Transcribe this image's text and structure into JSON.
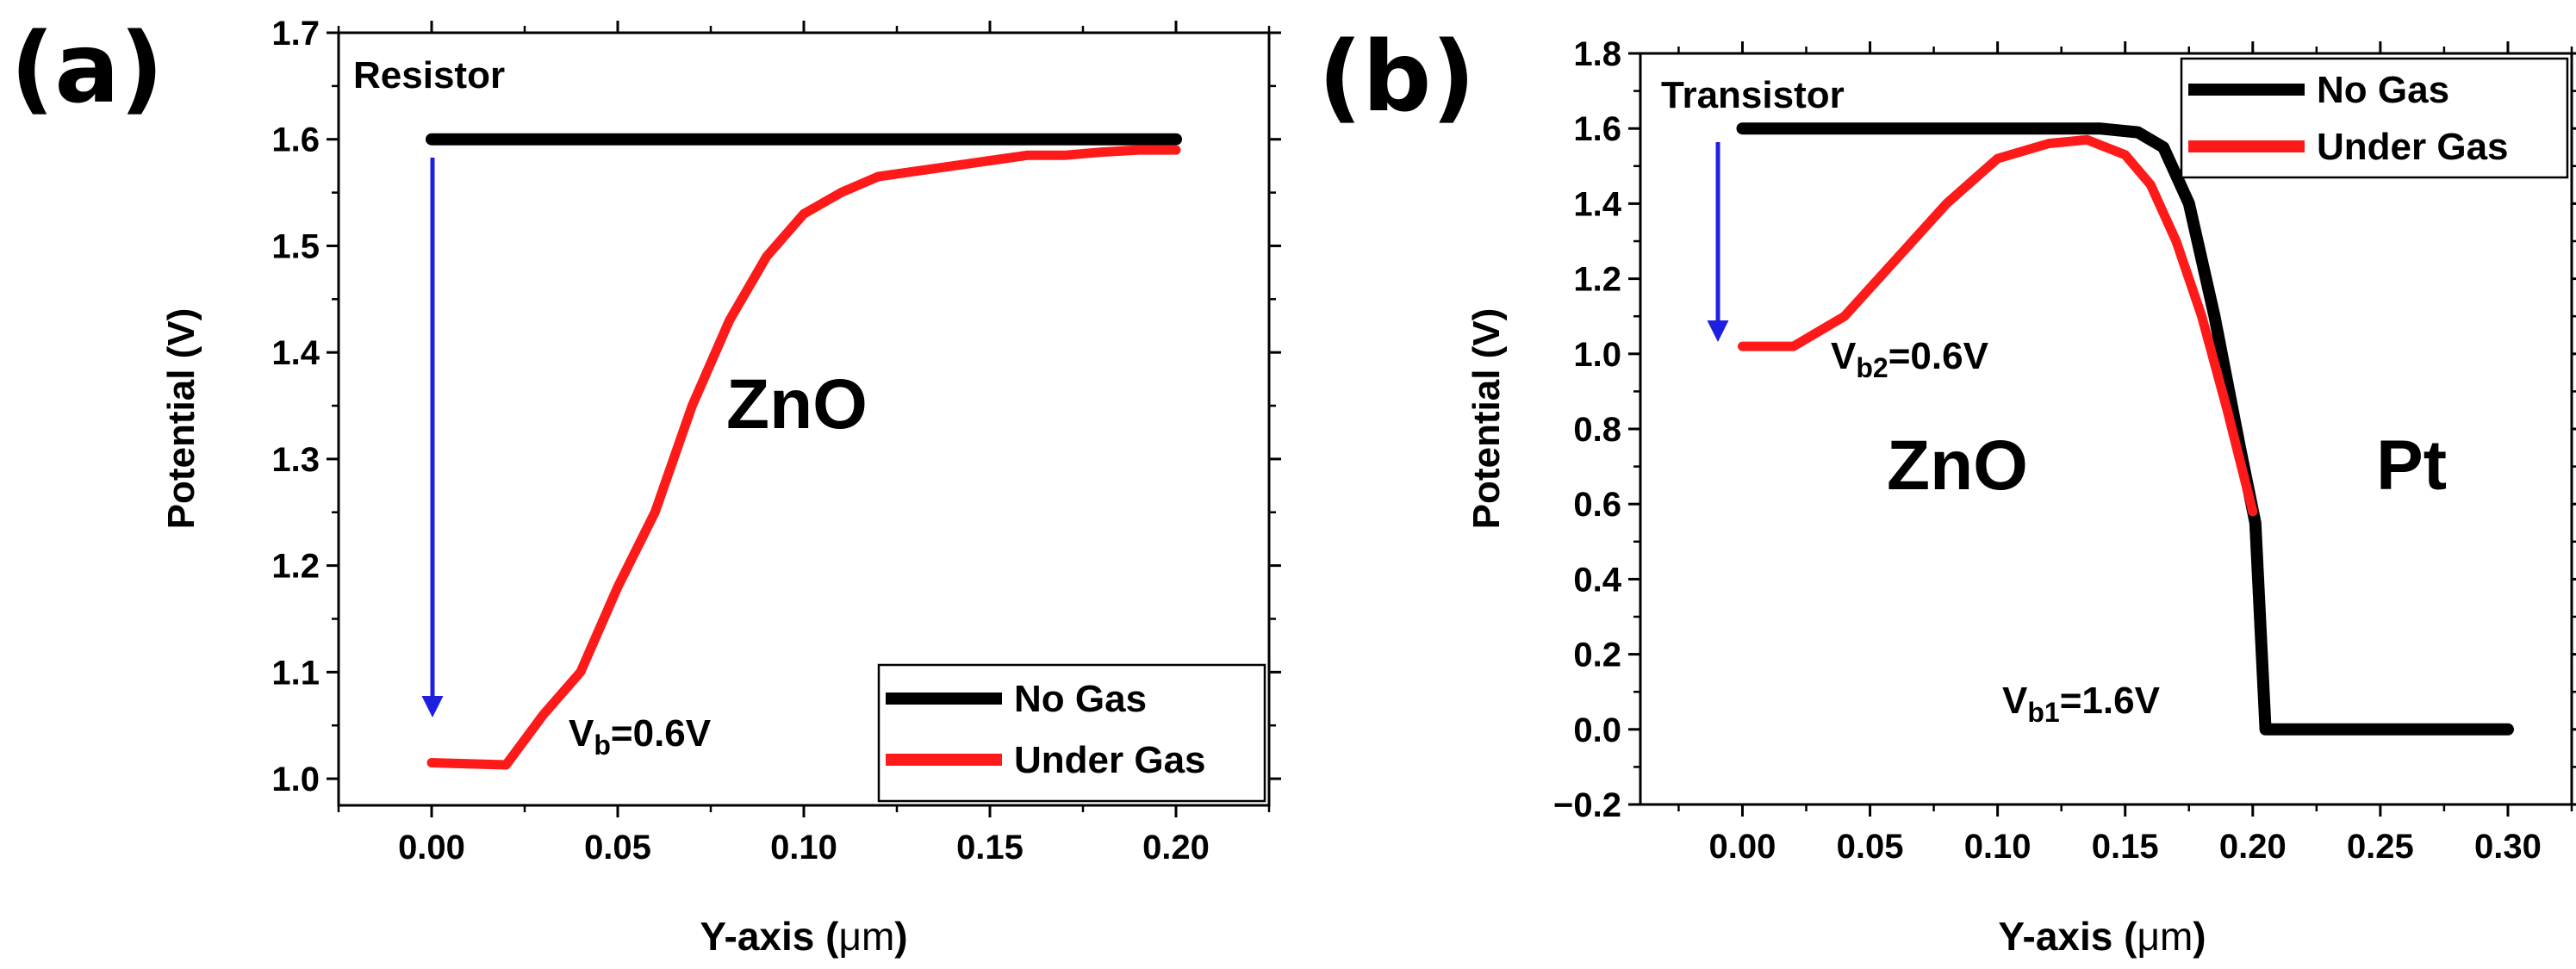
{
  "chart_data": [
    {
      "panel_label": "(a)",
      "type": "line",
      "title": "",
      "device": "Resistor",
      "xlabel_main": "Y-axis (",
      "xlabel_unit": "μm",
      "xlabel_close": ")",
      "ylabel": "Potential (V)",
      "xlim": [
        -0.025,
        0.225
      ],
      "ylim": [
        0.975,
        1.7
      ],
      "xticks": [
        0.0,
        0.05,
        0.1,
        0.15,
        0.2
      ],
      "xtick_labels": [
        "0.00",
        "0.05",
        "0.10",
        "0.15",
        "0.20"
      ],
      "yticks": [
        1.0,
        1.1,
        1.2,
        1.3,
        1.4,
        1.5,
        1.6,
        1.7
      ],
      "ytick_labels": [
        "1.0",
        "1.1",
        "1.2",
        "1.3",
        "1.4",
        "1.5",
        "1.6",
        "1.7"
      ],
      "series": [
        {
          "name": "No Gas",
          "color": "#000000",
          "x": [
            0.0,
            0.2
          ],
          "y": [
            1.6,
            1.6
          ]
        },
        {
          "name": "Under Gas",
          "color": "#ff1a1a",
          "x": [
            0.0,
            0.02,
            0.03,
            0.04,
            0.05,
            0.06,
            0.07,
            0.08,
            0.09,
            0.1,
            0.11,
            0.12,
            0.13,
            0.14,
            0.15,
            0.16,
            0.17,
            0.18,
            0.19,
            0.2
          ],
          "y": [
            1.015,
            1.013,
            1.06,
            1.1,
            1.18,
            1.25,
            1.35,
            1.43,
            1.49,
            1.53,
            1.55,
            1.565,
            1.57,
            1.575,
            1.58,
            1.585,
            1.585,
            1.588,
            1.59,
            1.59
          ]
        }
      ],
      "annotations": [
        {
          "name": "material-label",
          "text": "ZnO"
        },
        {
          "name": "barrier-label",
          "main": "V",
          "sub": "b",
          "rest": "=0.6V"
        }
      ],
      "legend_position": "bottom-right"
    },
    {
      "panel_label": "(b)",
      "type": "line",
      "title": "",
      "device": "Transistor",
      "xlabel_main": "Y-axis (",
      "xlabel_unit": "μm",
      "xlabel_close": ")",
      "ylabel": "Potential (V)",
      "xlim": [
        -0.04,
        0.325
      ],
      "ylim": [
        -0.2,
        1.8
      ],
      "xticks": [
        0.0,
        0.05,
        0.1,
        0.15,
        0.2,
        0.25,
        0.3
      ],
      "xtick_labels": [
        "0.00",
        "0.05",
        "0.10",
        "0.15",
        "0.20",
        "0.25",
        "0.30"
      ],
      "yticks": [
        -0.2,
        0.0,
        0.2,
        0.4,
        0.6,
        0.8,
        1.0,
        1.2,
        1.4,
        1.6,
        1.8
      ],
      "ytick_labels": [
        "−0.2",
        "0.0",
        "0.2",
        "0.4",
        "0.6",
        "0.8",
        "1.0",
        "1.2",
        "1.4",
        "1.6",
        "1.8"
      ],
      "series": [
        {
          "name": "No Gas",
          "color": "#000000",
          "x": [
            0.0,
            0.05,
            0.1,
            0.14,
            0.155,
            0.165,
            0.175,
            0.185,
            0.195,
            0.201,
            0.205,
            0.21,
            0.25,
            0.3
          ],
          "y": [
            1.6,
            1.6,
            1.6,
            1.6,
            1.59,
            1.55,
            1.4,
            1.1,
            0.75,
            0.55,
            0.0,
            0.0,
            0.0,
            0.0
          ]
        },
        {
          "name": "Under Gas",
          "color": "#ff1a1a",
          "x": [
            0.0,
            0.02,
            0.04,
            0.06,
            0.08,
            0.1,
            0.12,
            0.135,
            0.15,
            0.16,
            0.17,
            0.18,
            0.19,
            0.2
          ],
          "y": [
            1.02,
            1.02,
            1.1,
            1.25,
            1.4,
            1.52,
            1.56,
            1.57,
            1.53,
            1.45,
            1.3,
            1.1,
            0.85,
            0.58
          ]
        }
      ],
      "annotations": [
        {
          "name": "material-label-zno",
          "text": "ZnO"
        },
        {
          "name": "material-label-pt",
          "text": "Pt"
        },
        {
          "name": "barrier-label-2",
          "main": "V",
          "sub": "b2",
          "rest": "=0.6V"
        },
        {
          "name": "barrier-label-1",
          "main": "V",
          "sub": "b1",
          "rest": "=1.6V"
        }
      ],
      "legend_position": "top-right"
    }
  ],
  "colors": {
    "arrow": "#1f1fe0",
    "axis": "#000000",
    "no_gas": "#000000",
    "under_gas": "#ff1a1a"
  }
}
